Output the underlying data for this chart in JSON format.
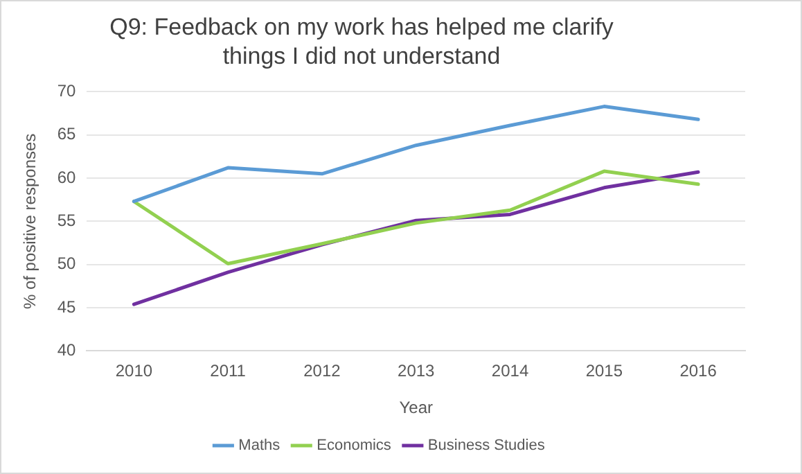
{
  "chart_data": {
    "type": "line",
    "title": "Q9: Feedback on my work has helped me clarify things I did not understand",
    "xlabel": "Year",
    "ylabel": "% of positive responses",
    "categories": [
      "2010",
      "2011",
      "2012",
      "2013",
      "2014",
      "2015",
      "2016"
    ],
    "series": [
      {
        "name": "Maths",
        "color": "#5b9bd5",
        "values": [
          57.3,
          61.2,
          60.5,
          63.8,
          66.1,
          68.3,
          66.8
        ]
      },
      {
        "name": "Economics",
        "color": "#92d050",
        "values": [
          57.3,
          50.1,
          52.4,
          54.8,
          56.3,
          60.8,
          59.3
        ]
      },
      {
        "name": "Business Studies",
        "color": "#7030a0",
        "values": [
          45.4,
          49.1,
          52.3,
          55.1,
          55.8,
          58.9,
          60.7
        ]
      }
    ],
    "ylim": [
      40,
      70
    ],
    "yticks": [
      40,
      45,
      50,
      55,
      60,
      65,
      70
    ],
    "grid": "y",
    "legend": "bottom",
    "marker": "none",
    "line_style": "solid"
  }
}
